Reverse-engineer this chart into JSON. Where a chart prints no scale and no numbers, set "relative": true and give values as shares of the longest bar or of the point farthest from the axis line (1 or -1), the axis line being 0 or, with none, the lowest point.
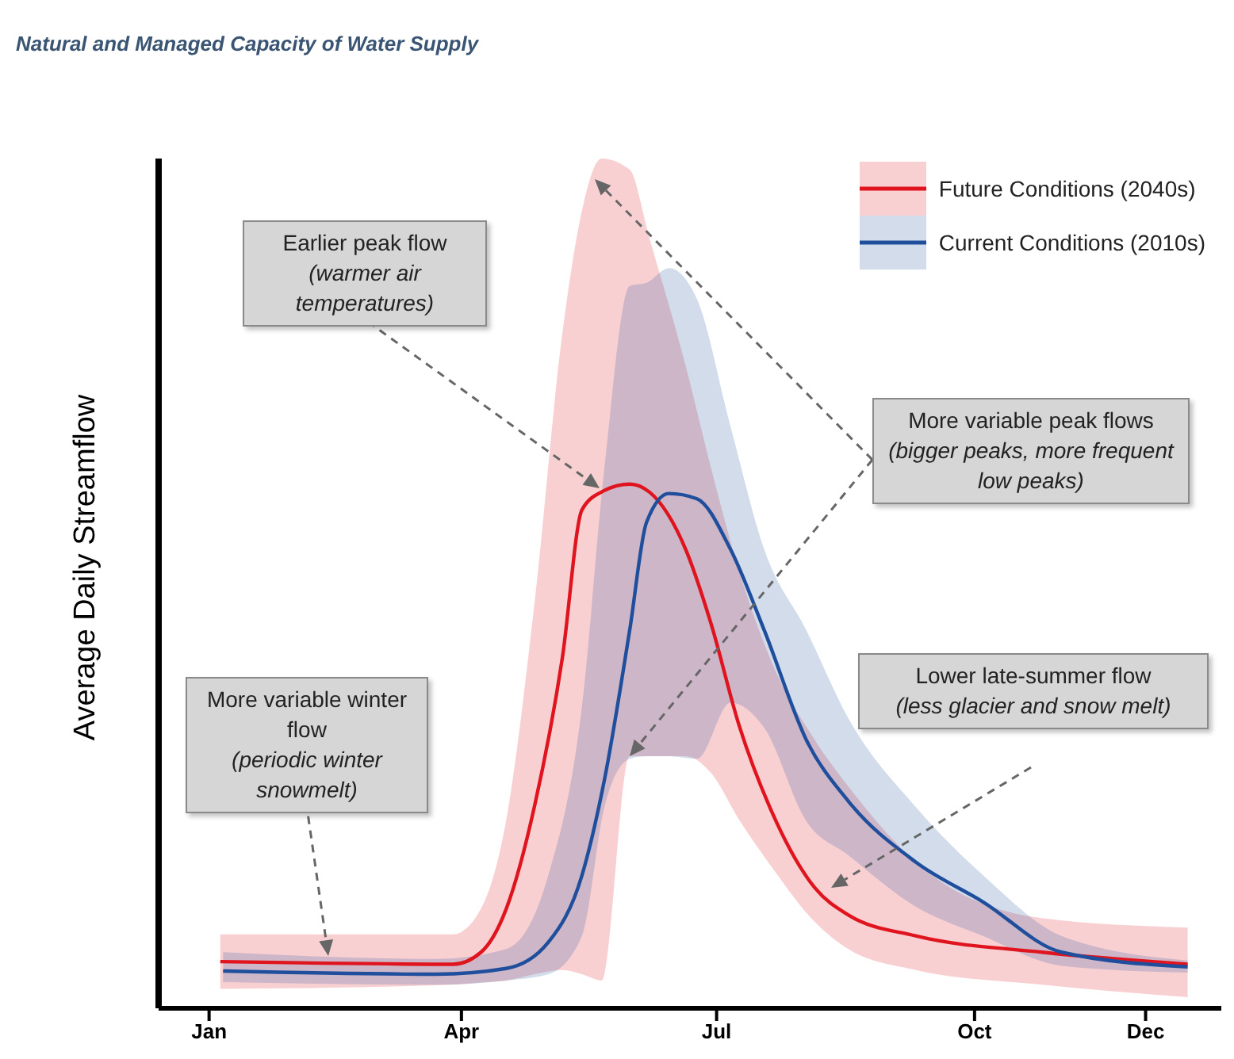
{
  "chart_data": {
    "type": "line",
    "title": "Natural and Managed Capacity of Water Supply",
    "ylabel": "Average Daily Streamflow",
    "relative": true,
    "legend": "top right",
    "xlim": [
      "2000-12-14",
      "2001-12-28"
    ],
    "xticks": [
      {
        "value": "--01-01",
        "label": "Jan"
      },
      {
        "value": "--04-01",
        "label": "Apr"
      },
      {
        "value": "--07-01",
        "label": "Jul"
      },
      {
        "value": "--10-01",
        "label": "Oct"
      },
      {
        "value": "--12-01",
        "label": "Dec"
      }
    ],
    "series": [
      {
        "name": "Future Conditions (2040s)",
        "color": "#e0141e",
        "x": [
          "--01-05",
          "--03-29",
          "--04-08",
          "--04-17",
          "--04-27",
          "--05-07",
          "--05-14",
          "--05-21",
          "--05-31",
          "--06-07",
          "--06-20",
          "--06-29",
          "--07-09",
          "--07-21",
          "--08-05",
          "--08-17",
          "--09-10",
          "--10-25",
          "--12-16"
        ],
        "values": [
          0.089,
          0.084,
          0.107,
          0.19,
          0.384,
          0.669,
          0.951,
          0.985,
          1,
          0.985,
          0.875,
          0.734,
          0.54,
          0.371,
          0.23,
          0.178,
          0.138,
          0.107,
          0.084
        ],
        "upper": [
          0.141,
          0.141,
          0.19,
          0.36,
          0.77,
          1.288,
          1.522,
          1.621,
          1.6,
          1.47,
          1.225,
          1.031,
          0.835,
          0.656,
          0.512,
          0.423,
          0.279,
          0.172,
          0.154
        ],
        "lower": [
          0.037,
          0.045,
          0.049,
          0.053,
          0.065,
          0.073,
          0.065,
          0.053,
          0.481,
          0.481,
          0.481,
          0.449,
          0.36,
          0.267,
          0.165,
          0.113,
          0.073,
          0.045,
          0.021
        ]
      },
      {
        "name": "Current Conditions (2010s)",
        "color": "#1f4e9c",
        "x": [
          "--01-06",
          "--03-23",
          "--04-17",
          "--05-02",
          "--05-14",
          "--05-22",
          "--05-31",
          "--06-06",
          "--06-14",
          "--06-24",
          "--07-06",
          "--07-18",
          "--08-02",
          "--08-17",
          "--09-10",
          "--10-04",
          "--11-01",
          "--12-16"
        ],
        "values": [
          0.071,
          0.065,
          0.076,
          0.126,
          0.254,
          0.436,
          0.721,
          0.927,
          0.982,
          0.972,
          0.875,
          0.721,
          0.512,
          0.395,
          0.279,
          0.203,
          0.107,
          0.079
        ],
        "upper": [
          0.107,
          0.094,
          0.113,
          0.254,
          0.577,
          1.031,
          1.378,
          1.384,
          1.412,
          1.353,
          1.109,
          0.875,
          0.721,
          0.553,
          0.384,
          0.254,
          0.138,
          0.091
        ],
        "lower": [
          0.05,
          0.045,
          0.053,
          0.065,
          0.138,
          0.384,
          0.476,
          0.481,
          0.481,
          0.476,
          0.583,
          0.535,
          0.357,
          0.292,
          0.194,
          0.138,
          0.081,
          0.068
        ]
      }
    ],
    "annotations": [
      "Earlier peak flow (warmer air temperatures)",
      "More variable peak flows (bigger peaks, more frequent low peaks)",
      "More variable winter flow (periodic winter snowmelt)",
      "Lower late-summer flow (less glacier and snow melt)"
    ]
  }
}
